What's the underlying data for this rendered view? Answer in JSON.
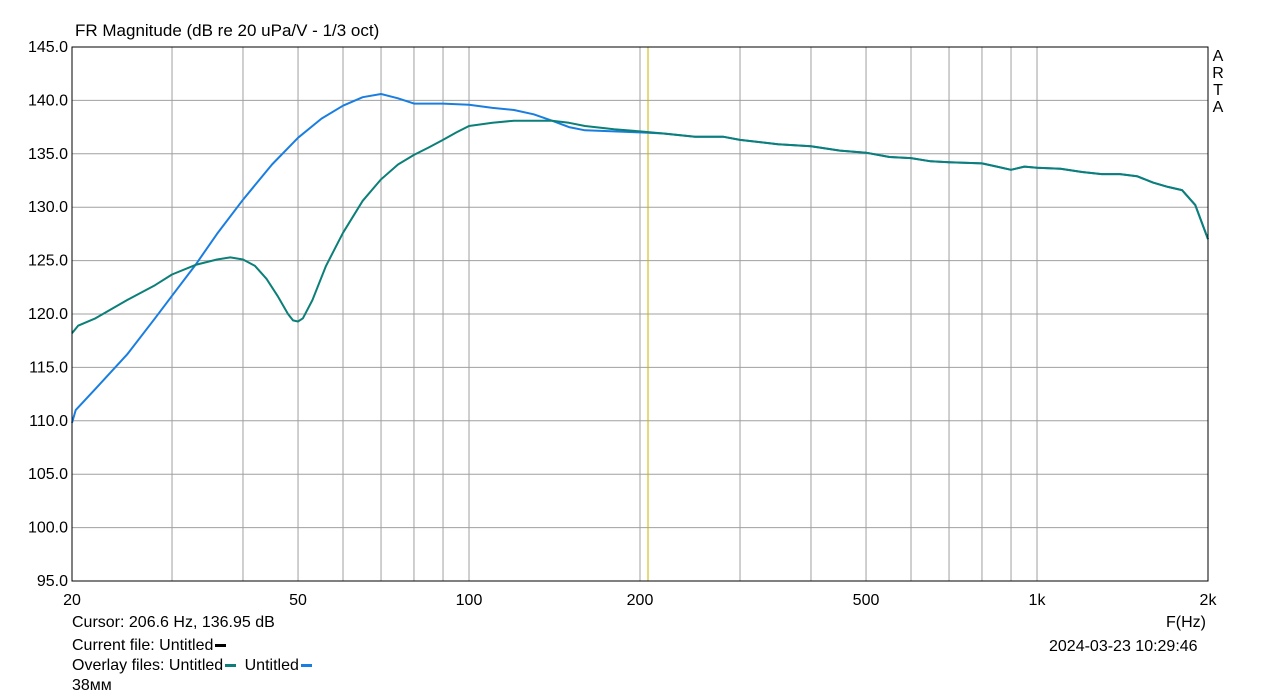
{
  "chart_data": {
    "type": "line",
    "title": "FR Magnitude (dB re 20 uPa/V - 1/3 oct)",
    "xlabel": "F(Hz)",
    "x_scale": "log",
    "xlim": [
      20,
      2000
    ],
    "ylim": [
      95,
      145
    ],
    "grid": true,
    "x_tick_labels": [
      "20",
      "50",
      "100",
      "200",
      "500",
      "1k",
      "2k"
    ],
    "x_tick_values": [
      20,
      50,
      100,
      200,
      500,
      1000,
      2000
    ],
    "y_tick_labels": [
      "145.0",
      "140.0",
      "135.0",
      "130.0",
      "125.0",
      "120.0",
      "115.0",
      "110.0",
      "105.0",
      "100.0",
      "95.0"
    ],
    "y_tick_values": [
      145,
      140,
      135,
      130,
      125,
      120,
      115,
      110,
      105,
      100,
      95
    ],
    "cursor_freq": 206.6,
    "series": [
      {
        "color": "#0b7f78",
        "points": [
          [
            20,
            118.2
          ],
          [
            20.5,
            118.9
          ],
          [
            22,
            119.6
          ],
          [
            25,
            121.3
          ],
          [
            28,
            122.7
          ],
          [
            30,
            123.7
          ],
          [
            33,
            124.6
          ],
          [
            36,
            125.1
          ],
          [
            38,
            125.3
          ],
          [
            40,
            125.1
          ],
          [
            42,
            124.5
          ],
          [
            44,
            123.3
          ],
          [
            46,
            121.7
          ],
          [
            48,
            120.0
          ],
          [
            49,
            119.4
          ],
          [
            50,
            119.3
          ],
          [
            51,
            119.6
          ],
          [
            53,
            121.3
          ],
          [
            56,
            124.5
          ],
          [
            60,
            127.6
          ],
          [
            65,
            130.6
          ],
          [
            70,
            132.6
          ],
          [
            75,
            134.0
          ],
          [
            80,
            134.9
          ],
          [
            85,
            135.6
          ],
          [
            90,
            136.3
          ],
          [
            95,
            137.0
          ],
          [
            100,
            137.6
          ],
          [
            110,
            137.9
          ],
          [
            120,
            138.1
          ],
          [
            140,
            138.1
          ],
          [
            150,
            137.9
          ],
          [
            160,
            137.6
          ],
          [
            180,
            137.3
          ],
          [
            200,
            137.1
          ],
          [
            220,
            136.9
          ],
          [
            250,
            136.6
          ],
          [
            280,
            136.6
          ],
          [
            300,
            136.3
          ],
          [
            350,
            135.9
          ],
          [
            400,
            135.7
          ],
          [
            450,
            135.3
          ],
          [
            500,
            135.1
          ],
          [
            550,
            134.7
          ],
          [
            600,
            134.6
          ],
          [
            650,
            134.3
          ],
          [
            700,
            134.2
          ],
          [
            800,
            134.1
          ],
          [
            850,
            133.8
          ],
          [
            900,
            133.5
          ],
          [
            950,
            133.8
          ],
          [
            1000,
            133.7
          ],
          [
            1100,
            133.6
          ],
          [
            1200,
            133.3
          ],
          [
            1300,
            133.1
          ],
          [
            1400,
            133.1
          ],
          [
            1500,
            132.9
          ],
          [
            1600,
            132.3
          ],
          [
            1700,
            131.9
          ],
          [
            1800,
            131.6
          ],
          [
            1900,
            130.2
          ],
          [
            2000,
            127.0
          ]
        ]
      },
      {
        "color": "#1a7ee0",
        "points": [
          [
            20,
            109.8
          ],
          [
            20.3,
            111.0
          ],
          [
            22,
            113.0
          ],
          [
            25,
            116.2
          ],
          [
            28,
            119.6
          ],
          [
            30,
            121.7
          ],
          [
            33,
            124.6
          ],
          [
            36,
            127.5
          ],
          [
            40,
            130.7
          ],
          [
            45,
            134.0
          ],
          [
            50,
            136.5
          ],
          [
            55,
            138.3
          ],
          [
            60,
            139.5
          ],
          [
            65,
            140.3
          ],
          [
            70,
            140.6
          ],
          [
            75,
            140.2
          ],
          [
            80,
            139.7
          ],
          [
            90,
            139.7
          ],
          [
            100,
            139.6
          ],
          [
            110,
            139.3
          ],
          [
            120,
            139.1
          ],
          [
            130,
            138.7
          ],
          [
            140,
            138.1
          ],
          [
            150,
            137.5
          ],
          [
            160,
            137.2
          ],
          [
            180,
            137.1
          ],
          [
            200,
            137.0
          ],
          [
            220,
            136.9
          ],
          [
            250,
            136.6
          ],
          [
            280,
            136.6
          ],
          [
            300,
            136.3
          ],
          [
            350,
            135.9
          ],
          [
            400,
            135.7
          ],
          [
            450,
            135.3
          ],
          [
            500,
            135.1
          ],
          [
            550,
            134.7
          ],
          [
            600,
            134.6
          ],
          [
            650,
            134.3
          ],
          [
            700,
            134.2
          ],
          [
            800,
            134.1
          ],
          [
            850,
            133.8
          ],
          [
            900,
            133.5
          ],
          [
            950,
            133.8
          ],
          [
            1000,
            133.7
          ],
          [
            1100,
            133.6
          ],
          [
            1200,
            133.3
          ],
          [
            1300,
            133.1
          ],
          [
            1400,
            133.1
          ],
          [
            1500,
            132.9
          ],
          [
            1600,
            132.3
          ],
          [
            1700,
            131.9
          ],
          [
            1800,
            131.6
          ],
          [
            1900,
            130.2
          ],
          [
            2000,
            127.0
          ]
        ]
      }
    ]
  },
  "watermark": [
    "A",
    "R",
    "T",
    "A"
  ],
  "cursor_text": "Cursor: 206.6 Hz, 136.95 dB",
  "current_file_label": "Current file: Untitled",
  "overlay_label": "Overlay files: Untitled",
  "overlay_second": "Untitled",
  "extra_label": "38мм",
  "datetime": "2024-03-23  10:29:46",
  "colors": {
    "current_file": "#000000",
    "overlay_1": "#0b7f78",
    "overlay_2": "#1a7ee0",
    "cursor": "#c8b400",
    "grid": "#a0a0a0"
  }
}
